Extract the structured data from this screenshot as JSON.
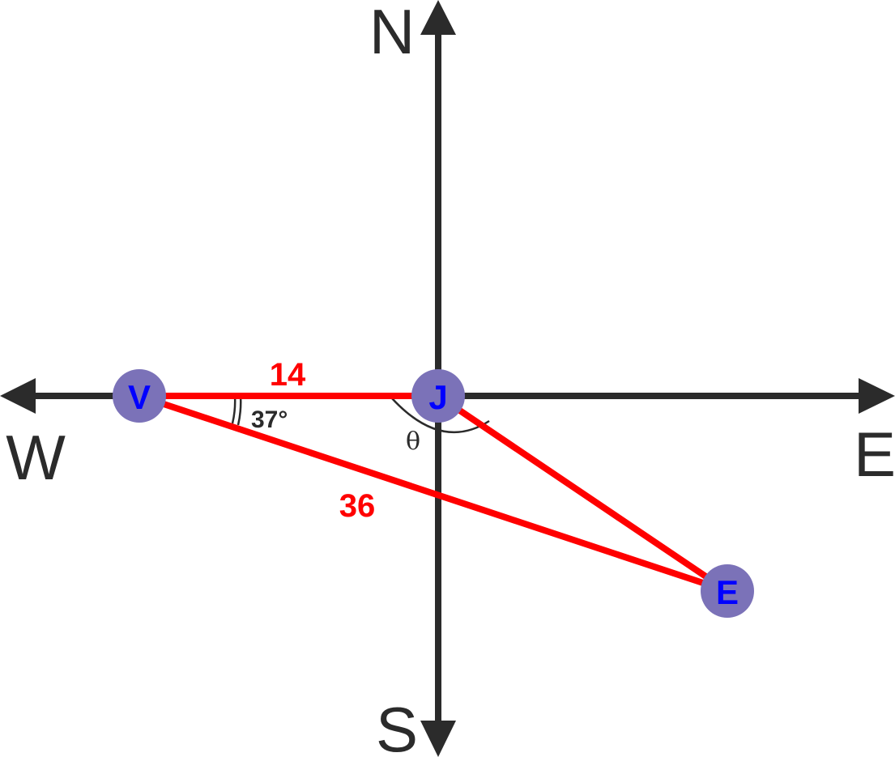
{
  "compass": {
    "north": "N",
    "south": "S",
    "east": "E",
    "west": "W"
  },
  "points": {
    "v": "V",
    "j": "J",
    "e": "E"
  },
  "segments": {
    "vj_length": "14",
    "ve_length": "36"
  },
  "angles": {
    "at_v": "37°",
    "at_j": "θ"
  },
  "colors": {
    "axis": "#2b2b2b",
    "segment": "#ff0000",
    "point_fill": "#7b72b8",
    "point_text": "#0000ff",
    "angle_text": "#2b2b2b"
  }
}
